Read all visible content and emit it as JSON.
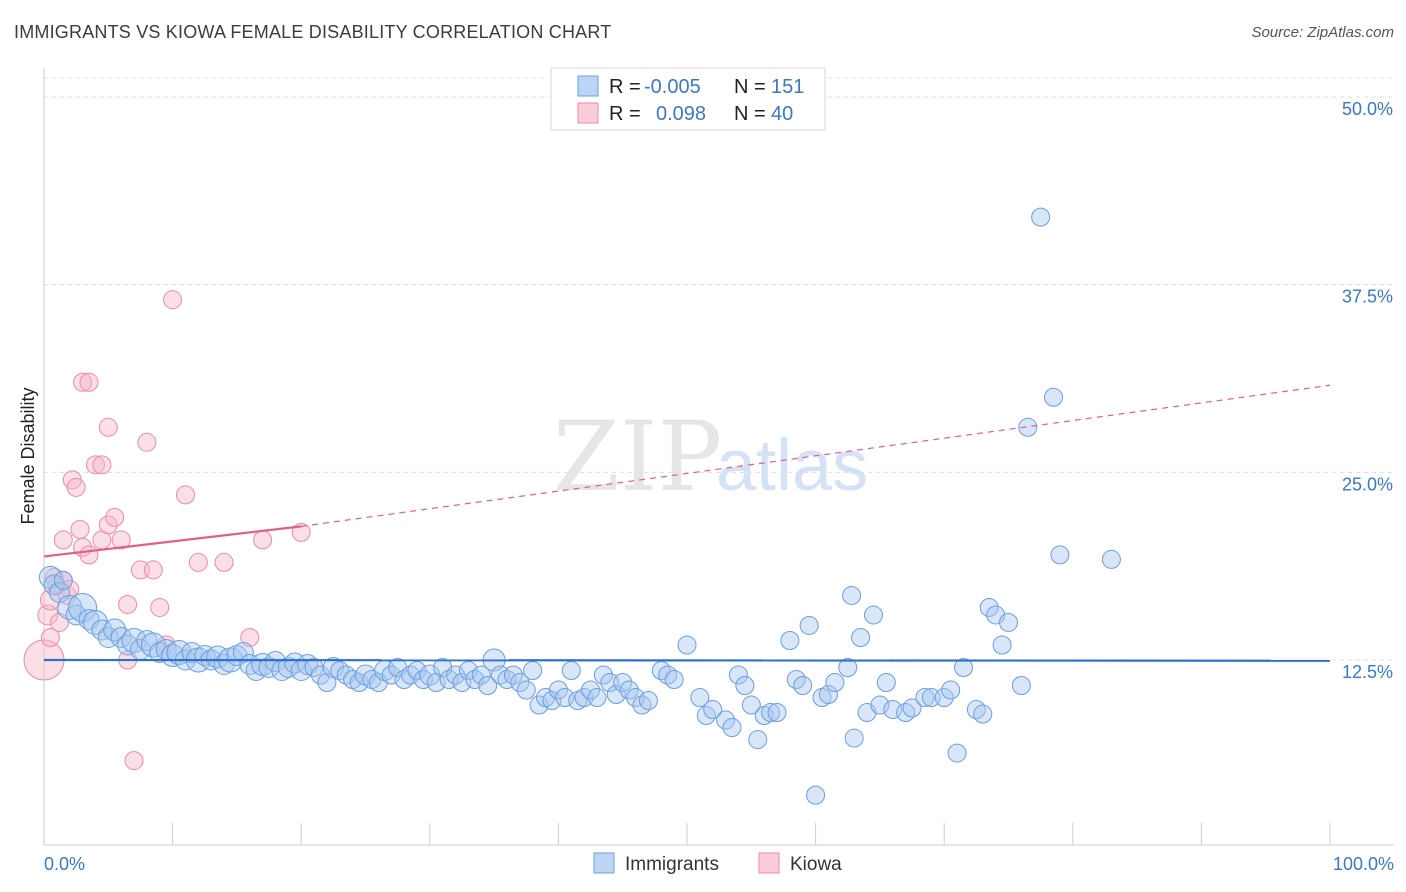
{
  "header": {
    "title": "IMMIGRANTS VS KIOWA FEMALE DISABILITY CORRELATION CHART",
    "source": "Source: ZipAtlas.com"
  },
  "watermark": {
    "zip": "ZIP",
    "atlas": "atlas"
  },
  "legend": {
    "rows": [
      {
        "r_label": "R =",
        "r_value": "-0.005",
        "n_label": "N =",
        "n_value": "151",
        "color": "#a9c8f0"
      },
      {
        "r_label": "R =",
        "r_value": "0.098",
        "n_label": "N =",
        "n_value": "40",
        "color": "#f5b8c8"
      }
    ]
  },
  "bottom_legend": [
    "Immigrants",
    "Kiowa"
  ],
  "chart_data": {
    "type": "scatter",
    "title": "IMMIGRANTS VS KIOWA FEMALE DISABILITY CORRELATION CHART",
    "xlabel": "",
    "ylabel": "Female Disability",
    "xlim": [
      0,
      100
    ],
    "ylim": [
      0,
      52
    ],
    "x_tick_labels": [
      "0.0%",
      "100.0%"
    ],
    "y_ticks": [
      12.5,
      25.0,
      37.5,
      50.0
    ],
    "y_tick_labels": [
      "12.5%",
      "25.0%",
      "37.5%",
      "50.0%"
    ],
    "colors": {
      "immigrants": "#6a9fe0",
      "immigrants_line": "#2f6fd0",
      "kiowa": "#f08aa8",
      "kiowa_line": "#e0608a"
    },
    "trend": {
      "immigrants": {
        "x": [
          0,
          100
        ],
        "y": [
          12.5,
          12.45
        ]
      },
      "kiowa_solid": {
        "x": [
          0,
          20
        ],
        "y": [
          19.4,
          21.4
        ]
      },
      "kiowa_dashed": {
        "x": [
          20,
          100
        ],
        "y": [
          21.4,
          30.8
        ]
      }
    },
    "series": [
      {
        "name": "Immigrants",
        "points": [
          [
            0.5,
            18.0,
            11
          ],
          [
            0.8,
            17.5,
            10
          ],
          [
            1.2,
            17.0,
            10
          ],
          [
            1.5,
            17.8,
            9
          ],
          [
            2.0,
            16.0,
            12
          ],
          [
            2.5,
            15.5,
            10
          ],
          [
            3.0,
            16.0,
            14
          ],
          [
            3.5,
            15.2,
            10
          ],
          [
            4.0,
            15.0,
            12
          ],
          [
            4.5,
            14.5,
            10
          ],
          [
            5.0,
            14.0,
            10
          ],
          [
            5.5,
            14.5,
            11
          ],
          [
            6.0,
            14.0,
            10
          ],
          [
            6.5,
            13.5,
            10
          ],
          [
            7.0,
            13.8,
            12
          ],
          [
            7.5,
            13.2,
            10
          ],
          [
            8.0,
            13.8,
            10
          ],
          [
            8.5,
            13.5,
            12
          ],
          [
            9.0,
            13.0,
            10
          ],
          [
            9.5,
            13.2,
            10
          ],
          [
            10.0,
            12.8,
            11
          ],
          [
            10.5,
            13.0,
            12
          ],
          [
            11.0,
            12.5,
            10
          ],
          [
            11.5,
            13.0,
            10
          ],
          [
            12.0,
            12.5,
            12
          ],
          [
            12.5,
            12.8,
            10
          ],
          [
            13.0,
            12.5,
            10
          ],
          [
            13.5,
            12.7,
            11
          ],
          [
            14.0,
            12.2,
            10
          ],
          [
            14.5,
            12.5,
            12
          ],
          [
            15.0,
            12.8,
            10
          ],
          [
            15.5,
            13.0,
            10
          ],
          [
            16.0,
            12.2,
            10
          ],
          [
            16.5,
            11.8,
            10
          ],
          [
            17.0,
            12.2,
            11
          ],
          [
            17.5,
            12.0,
            10
          ],
          [
            18.0,
            12.4,
            10
          ],
          [
            18.5,
            11.8,
            10
          ],
          [
            19.0,
            12.0,
            10
          ],
          [
            19.5,
            12.3,
            10
          ],
          [
            20.0,
            11.8,
            10
          ],
          [
            20.5,
            12.2,
            10
          ],
          [
            21.0,
            12.0,
            9
          ],
          [
            21.5,
            11.5,
            9
          ],
          [
            22.0,
            11.0,
            9
          ],
          [
            22.5,
            12.0,
            10
          ],
          [
            23.0,
            11.8,
            9
          ],
          [
            23.5,
            11.5,
            9
          ],
          [
            24.0,
            11.2,
            9
          ],
          [
            24.5,
            11.0,
            9
          ],
          [
            25.0,
            11.5,
            10
          ],
          [
            25.5,
            11.2,
            9
          ],
          [
            26.0,
            11.0,
            9
          ],
          [
            26.5,
            11.8,
            10
          ],
          [
            27.0,
            11.5,
            9
          ],
          [
            27.5,
            12.0,
            9
          ],
          [
            28.0,
            11.2,
            9
          ],
          [
            28.5,
            11.5,
            9
          ],
          [
            29.0,
            11.8,
            9
          ],
          [
            29.5,
            11.2,
            9
          ],
          [
            30.0,
            11.5,
            10
          ],
          [
            30.5,
            11.0,
            9
          ],
          [
            31.0,
            12.0,
            9
          ],
          [
            31.5,
            11.2,
            9
          ],
          [
            32.0,
            11.5,
            9
          ],
          [
            32.5,
            11.0,
            9
          ],
          [
            33.0,
            11.8,
            9
          ],
          [
            33.5,
            11.2,
            9
          ],
          [
            34.0,
            11.5,
            9
          ],
          [
            34.5,
            10.8,
            9
          ],
          [
            35.0,
            12.5,
            11
          ],
          [
            35.5,
            11.5,
            9
          ],
          [
            36.0,
            11.2,
            9
          ],
          [
            36.5,
            11.5,
            9
          ],
          [
            37.0,
            11.0,
            9
          ],
          [
            37.5,
            10.5,
            9
          ],
          [
            38.0,
            11.8,
            9
          ],
          [
            38.5,
            9.5,
            9
          ],
          [
            39.0,
            10.0,
            9
          ],
          [
            39.5,
            9.8,
            9
          ],
          [
            40.0,
            10.5,
            9
          ],
          [
            40.5,
            10.0,
            9
          ],
          [
            41.0,
            11.8,
            9
          ],
          [
            41.5,
            9.8,
            9
          ],
          [
            42.0,
            10.0,
            9
          ],
          [
            42.5,
            10.5,
            9
          ],
          [
            43.0,
            10.0,
            9
          ],
          [
            43.5,
            11.5,
            9
          ],
          [
            44.0,
            11.0,
            9
          ],
          [
            44.5,
            10.2,
            9
          ],
          [
            45.0,
            11.0,
            9
          ],
          [
            45.5,
            10.5,
            9
          ],
          [
            46.0,
            10.0,
            9
          ],
          [
            46.5,
            9.5,
            9
          ],
          [
            47.0,
            9.8,
            9
          ],
          [
            48.0,
            11.8,
            9
          ],
          [
            48.5,
            11.5,
            9
          ],
          [
            49.0,
            11.2,
            9
          ],
          [
            50.0,
            13.5,
            9
          ],
          [
            51.0,
            10.0,
            9
          ],
          [
            51.5,
            8.8,
            9
          ],
          [
            52.0,
            9.2,
            9
          ],
          [
            53.0,
            8.5,
            9
          ],
          [
            53.5,
            8.0,
            9
          ],
          [
            54.0,
            11.5,
            9
          ],
          [
            54.5,
            10.8,
            9
          ],
          [
            55.0,
            9.5,
            9
          ],
          [
            55.5,
            7.2,
            9
          ],
          [
            56.0,
            8.8,
            9
          ],
          [
            56.5,
            9.0,
            9
          ],
          [
            57.0,
            9.0,
            9
          ],
          [
            58.0,
            13.8,
            9
          ],
          [
            58.5,
            11.2,
            9
          ],
          [
            59.0,
            10.8,
            9
          ],
          [
            59.5,
            14.8,
            9
          ],
          [
            60.0,
            3.5,
            9
          ],
          [
            60.5,
            10.0,
            9
          ],
          [
            61.0,
            10.2,
            9
          ],
          [
            61.5,
            11.0,
            9
          ],
          [
            62.5,
            12.0,
            9
          ],
          [
            62.8,
            16.8,
            9
          ],
          [
            63.0,
            7.3,
            9
          ],
          [
            63.5,
            14.0,
            9
          ],
          [
            64.0,
            9.0,
            9
          ],
          [
            64.5,
            15.5,
            9
          ],
          [
            65.0,
            9.5,
            9
          ],
          [
            65.5,
            11.0,
            9
          ],
          [
            66.0,
            9.2,
            9
          ],
          [
            67.0,
            9.0,
            9
          ],
          [
            67.5,
            9.3,
            9
          ],
          [
            68.5,
            10.0,
            9
          ],
          [
            69.0,
            10.0,
            9
          ],
          [
            70.0,
            10.0,
            9
          ],
          [
            70.5,
            10.5,
            9
          ],
          [
            71.0,
            6.3,
            9
          ],
          [
            71.5,
            12.0,
            9
          ],
          [
            72.5,
            9.2,
            9
          ],
          [
            73.0,
            8.9,
            9
          ],
          [
            73.5,
            16.0,
            9
          ],
          [
            74.0,
            15.5,
            9
          ],
          [
            74.5,
            13.5,
            9
          ],
          [
            75.0,
            15.0,
            9
          ],
          [
            76.0,
            10.8,
            9
          ],
          [
            76.5,
            28.0,
            9
          ],
          [
            77.5,
            42.0,
            9
          ],
          [
            78.5,
            30.0,
            9
          ],
          [
            79.0,
            19.5,
            9
          ],
          [
            83.0,
            19.2,
            9
          ]
        ]
      },
      {
        "name": "Kiowa",
        "points": [
          [
            0.0,
            12.5,
            20
          ],
          [
            0.3,
            15.5,
            10
          ],
          [
            0.5,
            16.5,
            10
          ],
          [
            0.5,
            14.0,
            9
          ],
          [
            0.8,
            18.0,
            9
          ],
          [
            1.0,
            17.5,
            9
          ],
          [
            1.2,
            15.0,
            9
          ],
          [
            1.5,
            17.8,
            9
          ],
          [
            1.5,
            20.5,
            9
          ],
          [
            1.8,
            16.8,
            9
          ],
          [
            2.0,
            17.2,
            9
          ],
          [
            2.2,
            24.5,
            9
          ],
          [
            2.5,
            24.0,
            9
          ],
          [
            2.8,
            21.2,
            9
          ],
          [
            3.0,
            31.0,
            9
          ],
          [
            3.0,
            20.0,
            9
          ],
          [
            3.5,
            31.0,
            9
          ],
          [
            3.5,
            19.5,
            9
          ],
          [
            4.0,
            25.5,
            9
          ],
          [
            4.5,
            25.5,
            9
          ],
          [
            4.5,
            20.5,
            9
          ],
          [
            5.0,
            28.0,
            9
          ],
          [
            5.0,
            21.5,
            9
          ],
          [
            5.5,
            22.0,
            9
          ],
          [
            6.0,
            20.5,
            9
          ],
          [
            6.5,
            12.5,
            9
          ],
          [
            6.5,
            16.2,
            9
          ],
          [
            7.0,
            5.8,
            9
          ],
          [
            7.5,
            18.5,
            9
          ],
          [
            8.0,
            27.0,
            9
          ],
          [
            8.5,
            18.5,
            9
          ],
          [
            9.0,
            16.0,
            9
          ],
          [
            9.5,
            13.5,
            9
          ],
          [
            10.0,
            36.5,
            9
          ],
          [
            11.0,
            23.5,
            9
          ],
          [
            12.0,
            19.0,
            9
          ],
          [
            14.0,
            19.0,
            9
          ],
          [
            16.0,
            14.0,
            9
          ],
          [
            17.0,
            20.5,
            9
          ],
          [
            20.0,
            21.0,
            9
          ]
        ]
      }
    ]
  }
}
